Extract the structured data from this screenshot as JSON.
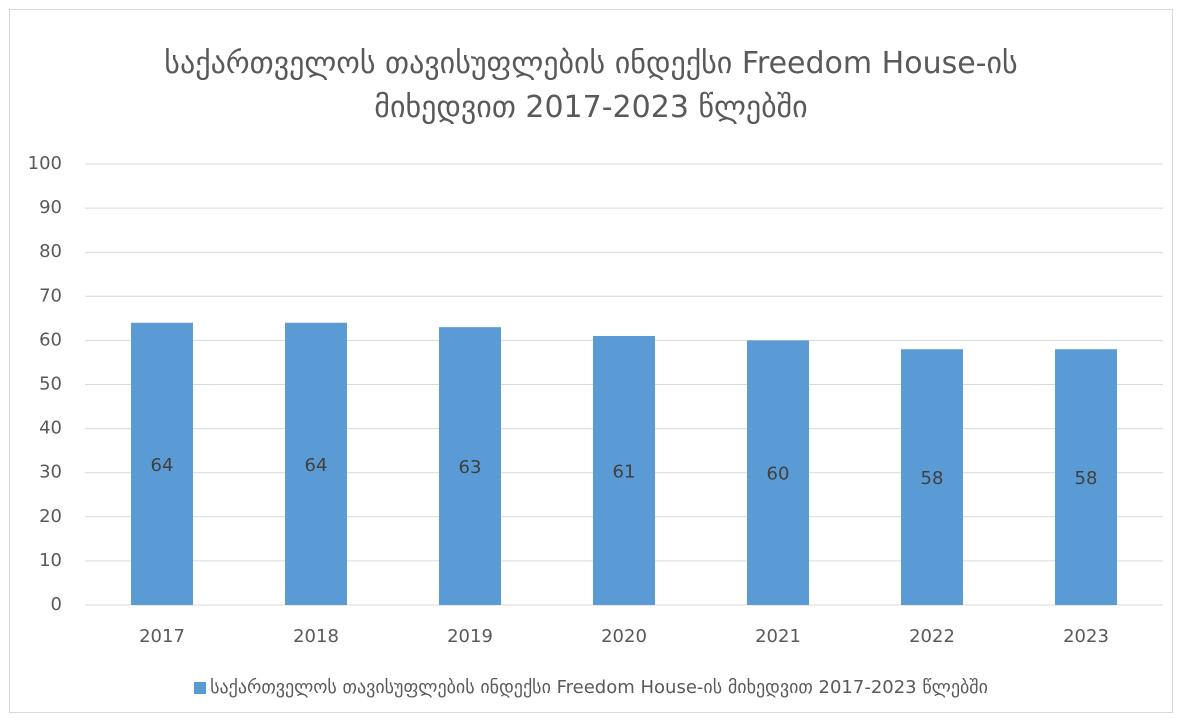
{
  "chart_data": {
    "type": "bar",
    "title": "საქართველოს თავისუფლების ინდექსი Freedom House-ის მიხედვით 2017-2023 წლებში",
    "categories": [
      "2017",
      "2018",
      "2019",
      "2020",
      "2021",
      "2022",
      "2023"
    ],
    "series": [
      {
        "name": "საქართველოს თავისუფლების ინდექსი Freedom House-ის მიხედვით 2017-2023 წლებში",
        "color": "#5b9bd5",
        "values": [
          64,
          64,
          63,
          61,
          60,
          58,
          58
        ]
      }
    ],
    "ylim": [
      0,
      100
    ],
    "yticks": [
      0,
      10,
      20,
      30,
      40,
      50,
      60,
      70,
      80,
      90,
      100
    ],
    "grid": true,
    "legend": "bottom"
  }
}
